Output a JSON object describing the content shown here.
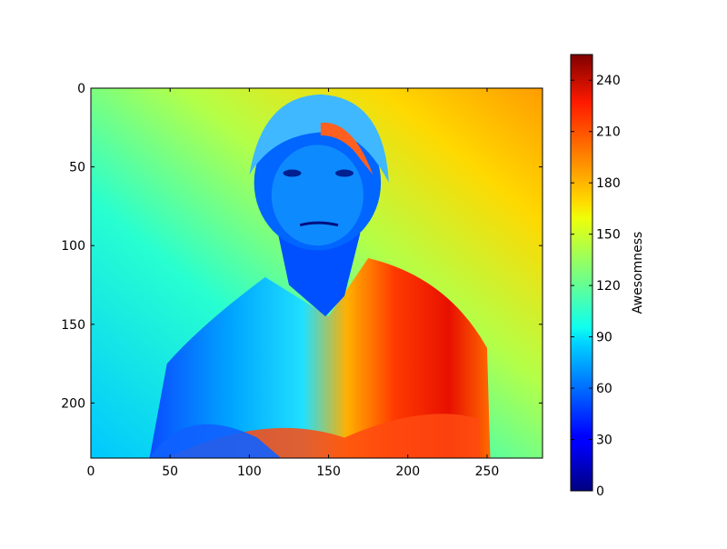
{
  "chart_data": {
    "type": "heatmap",
    "description_kind": "image displayed with jet colormap",
    "colormap": "jet",
    "image_shape": {
      "rows": 235,
      "cols": 285
    },
    "xlim": [
      0,
      285
    ],
    "ylim": [
      235,
      0
    ],
    "xticks": [
      0,
      50,
      100,
      150,
      200,
      250
    ],
    "yticks": [
      0,
      50,
      100,
      150,
      200
    ],
    "colorbar": {
      "label": "Awesomness",
      "range": [
        0,
        255
      ],
      "ticks": [
        0,
        30,
        60,
        90,
        120,
        150,
        180,
        210,
        240
      ]
    },
    "grid": false
  }
}
